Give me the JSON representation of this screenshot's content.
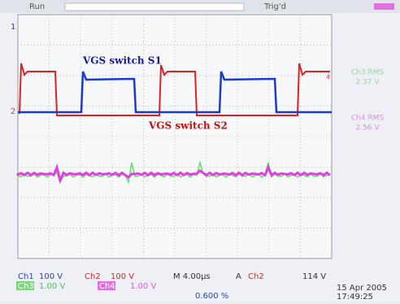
{
  "status_bar": {
    "run": "Run",
    "trigger": "Trig'd"
  },
  "annotations": {
    "upper": "VGS switch S1",
    "lower": "VGS switch S2"
  },
  "markers": {
    "ch1": "1",
    "ch2": "2",
    "ch4": "4"
  },
  "side_panel": {
    "ch3_title": "Ch3 RMS",
    "ch3_value": "2.37 V",
    "ch4_title": "Ch4 RMS",
    "ch4_value": "2.56 V"
  },
  "readout": {
    "row1": {
      "ch1": "Ch1",
      "ch1_scale": "100 V",
      "ch2": "Ch2",
      "ch2_scale": "100 V",
      "timebase": "M 4.00µs",
      "mode": "A",
      "trig_source": "Ch2",
      "trig_level": "114 V"
    },
    "row2": {
      "ch3": "Ch3",
      "ch3_scale": "1.00 V",
      "ch4": "Ch4",
      "ch4_scale": "1.00 V"
    },
    "position": "0.600 %",
    "date": "15 Apr 2005",
    "time": "17:49:25"
  }
}
